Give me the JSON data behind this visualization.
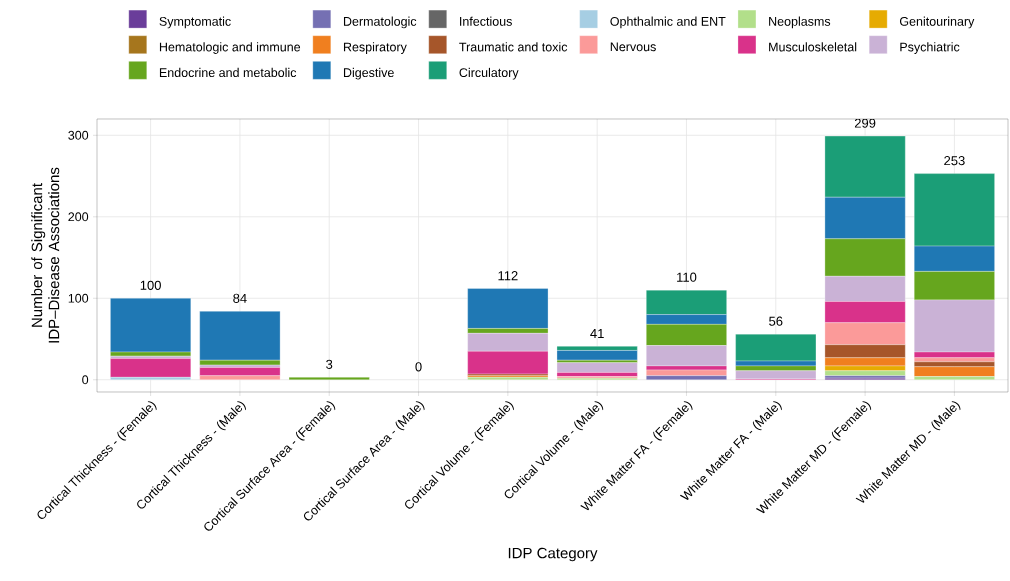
{
  "chart_data": {
    "type": "bar",
    "stacked": true,
    "xlabel": "IDP Category",
    "ylabel": "Number of Significant IDP–Disease Associations",
    "categories": [
      "Cortical Thickness - (Female)",
      "Cortical Thickness - (Male)",
      "Cortical Surface Area - (Female)",
      "Cortical Surface Area - (Male)",
      "Cortical Volume - (Female)",
      "Cortical Volume - (Male)",
      "White Matter FA - (Female)",
      "White Matter FA - (Male)",
      "White Matter MD - (Female)",
      "White Matter MD - (Male)"
    ],
    "series": [
      {
        "name": "Symptomatic",
        "color": "#6a3d9a",
        "values": [
          0,
          0,
          0,
          0,
          0,
          0,
          0,
          0,
          2,
          0
        ]
      },
      {
        "name": "Dermatologic",
        "color": "#7570b3",
        "values": [
          0,
          0,
          0,
          0,
          0,
          0,
          5,
          0,
          3,
          0
        ]
      },
      {
        "name": "Infectious",
        "color": "#666666",
        "values": [
          0,
          0,
          0,
          0,
          0,
          0,
          0,
          0,
          0,
          0
        ]
      },
      {
        "name": "Ophthalmic and ENT",
        "color": "#a6cee3",
        "values": [
          3,
          0,
          0,
          0,
          0,
          0,
          0,
          0,
          0,
          0
        ]
      },
      {
        "name": "Neoplasms",
        "color": "#b2df8a",
        "values": [
          0,
          0,
          0,
          0,
          3,
          2,
          0,
          0,
          6,
          4
        ]
      },
      {
        "name": "Genitourinary",
        "color": "#e6ab02",
        "values": [
          0,
          0,
          0,
          0,
          0,
          0,
          0,
          0,
          6,
          0
        ]
      },
      {
        "name": "Hematologic and immune",
        "color": "#a6761d",
        "values": [
          0,
          0,
          0,
          0,
          0,
          0,
          0,
          0,
          0,
          0
        ]
      },
      {
        "name": "Respiratory",
        "color": "#f07f1f",
        "values": [
          0,
          0,
          0,
          0,
          2,
          0,
          0,
          0,
          10,
          12
        ]
      },
      {
        "name": "Traumatic and toxic",
        "color": "#a6562a",
        "values": [
          0,
          0,
          0,
          0,
          2,
          0,
          0,
          0,
          16,
          6
        ]
      },
      {
        "name": "Nervous",
        "color": "#fb9a99",
        "values": [
          0,
          5,
          0,
          0,
          0,
          2,
          7,
          0,
          27,
          5
        ]
      },
      {
        "name": "Musculoskeletal",
        "color": "#d9328a",
        "values": [
          23,
          10,
          0,
          0,
          28,
          5,
          5,
          1,
          26,
          7
        ]
      },
      {
        "name": "Psychiatric",
        "color": "#cab2d6",
        "values": [
          3,
          3,
          0,
          0,
          22,
          12,
          25,
          10,
          31,
          64
        ]
      },
      {
        "name": "Endocrine and metabolic",
        "color": "#66a61e",
        "values": [
          5,
          6,
          3,
          0,
          6,
          3,
          26,
          6,
          46,
          35
        ]
      },
      {
        "name": "Digestive",
        "color": "#1f78b4",
        "values": [
          66,
          60,
          0,
          0,
          49,
          12,
          12,
          6,
          51,
          31
        ]
      },
      {
        "name": "Circulatory",
        "color": "#1b9e77",
        "values": [
          0,
          0,
          0,
          0,
          0,
          5,
          30,
          33,
          75,
          89
        ]
      }
    ],
    "totals": [
      "100",
      "84",
      "3",
      "0",
      "112",
      "41",
      "110",
      "56",
      "299",
      "253"
    ],
    "ylim": [
      -15,
      320
    ],
    "yticks": [
      0,
      100,
      200,
      300
    ],
    "grid": true,
    "legend": "top"
  }
}
